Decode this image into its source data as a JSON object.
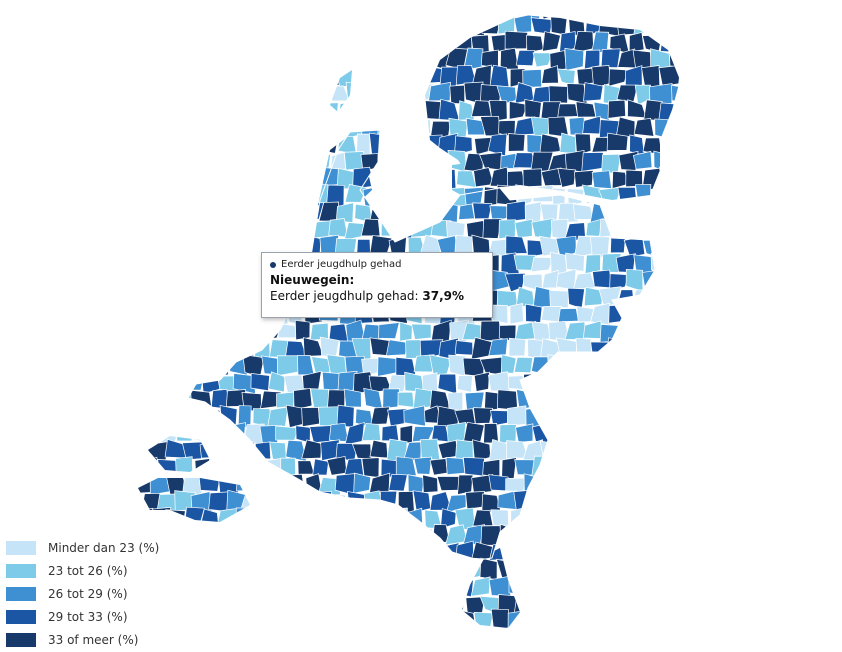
{
  "legend": {
    "items": [
      {
        "label": "Minder dan 23 (%)",
        "color": "#c6e4f7"
      },
      {
        "label": "23 tot 26 (%)",
        "color": "#7ecbe9"
      },
      {
        "label": "26 tot 29 (%)",
        "color": "#3f8fd3"
      },
      {
        "label": "29 tot 33 (%)",
        "color": "#1a56a3"
      },
      {
        "label": "33 of meer (%)",
        "color": "#173a6b"
      }
    ]
  },
  "tooltip": {
    "series": "Eerder jeugdhulp gehad",
    "municipality": "Nieuwegein:",
    "metric": "Eerder jeugdhulp gehad:",
    "value": "37,9%"
  }
}
